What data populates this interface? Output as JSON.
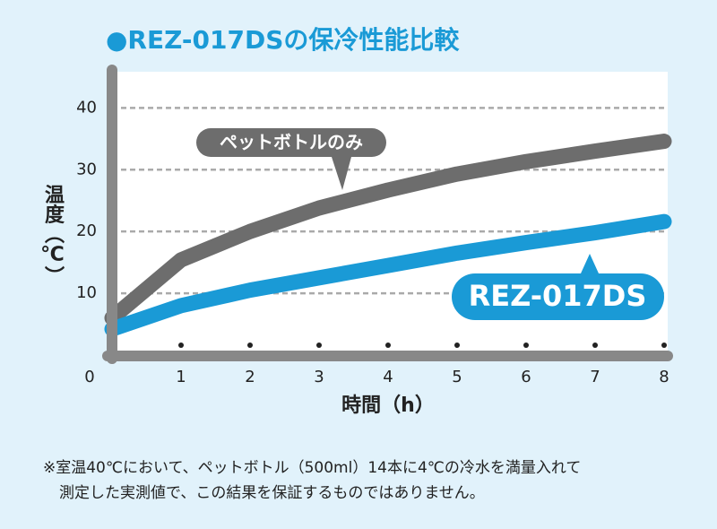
{
  "chart_data": {
    "type": "line",
    "title": "●REZ-017DSの保冷性能比較",
    "x_label": "時間（h）",
    "y_label": "温度（℃）",
    "x": [
      0,
      1,
      2,
      3,
      4,
      5,
      6,
      7,
      8
    ],
    "series": [
      {
        "name": "ペットボトルのみ",
        "color": "#6d6d6d",
        "values": [
          6,
          15.4,
          20,
          23.8,
          26.7,
          29.3,
          31.3,
          33,
          34.6
        ]
      },
      {
        "name": "REZ-017DS",
        "color": "#1a9ad6",
        "values": [
          4.2,
          8,
          10.5,
          12.5,
          14.5,
          16.5,
          18.2,
          19.8,
          21.6
        ]
      }
    ],
    "xlim": [
      0,
      8
    ],
    "xticks": [
      0,
      1,
      2,
      3,
      4,
      5,
      6,
      7,
      8
    ],
    "ylim": [
      0,
      46
    ],
    "yticks": [
      10,
      20,
      30,
      40
    ],
    "grid": true,
    "notes": [
      "※室温40℃において、ペットボトル（500ml）14本に4℃の冷水を満量入れて",
      "測定した実測値で、この結果を保証するものではありません。"
    ]
  }
}
